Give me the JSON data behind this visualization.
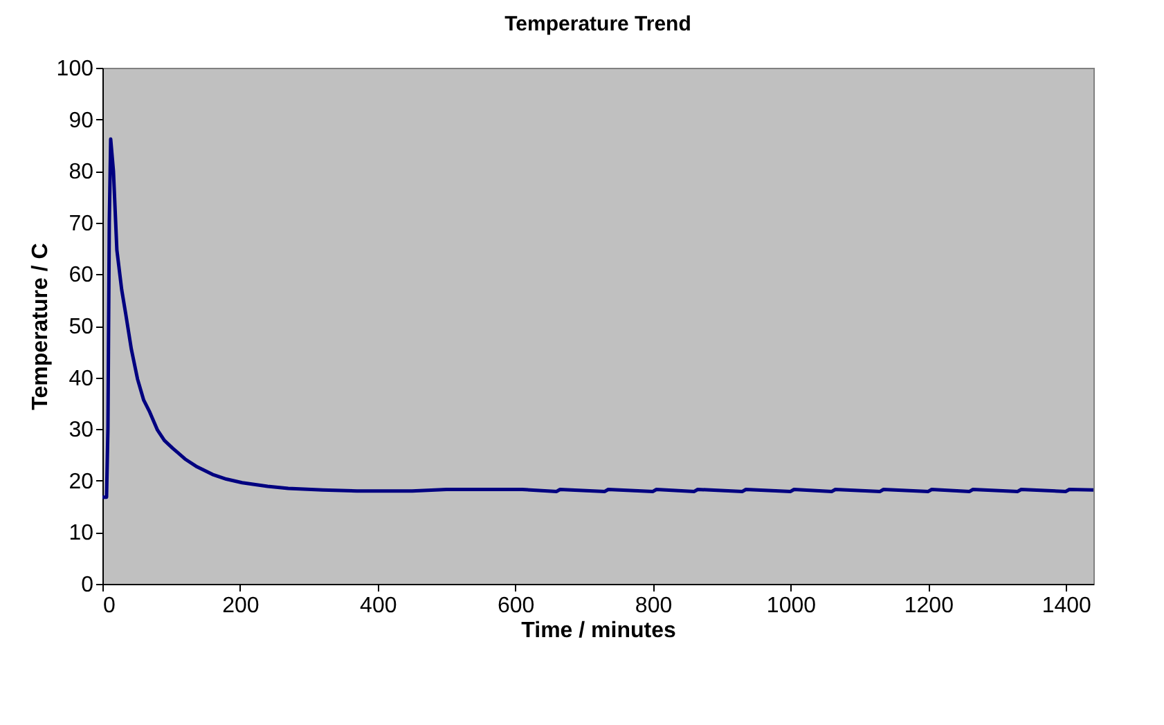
{
  "chart_data": {
    "type": "line",
    "title": "Temperature Trend",
    "xlabel": "Time / minutes",
    "ylabel": "Temperature / C",
    "x": [
      0,
      6,
      8,
      10,
      12,
      16,
      21,
      28,
      34,
      42,
      51,
      60,
      68,
      80,
      90,
      102,
      120,
      136,
      160,
      180,
      203,
      240,
      270,
      320,
      370,
      420,
      450,
      500,
      560,
      610,
      660,
      665,
      730,
      735,
      800,
      805,
      860,
      865,
      930,
      935,
      1000,
      1005,
      1060,
      1065,
      1130,
      1135,
      1200,
      1205,
      1260,
      1265,
      1330,
      1335,
      1400,
      1405,
      1440
    ],
    "series": [
      {
        "color": "#000080",
        "values": [
          16.8,
          16.8,
          30,
          70,
          86.2,
          80,
          64.7,
          57,
          52.2,
          45.5,
          39.7,
          35.6,
          33.5,
          29.8,
          27.8,
          26.3,
          24.2,
          22.8,
          21.2,
          20.3,
          19.6,
          18.9,
          18.5,
          18.2,
          18.0,
          18.0,
          18.0,
          18.3,
          18.3,
          18.3,
          17.9,
          18.3,
          17.9,
          18.3,
          17.9,
          18.3,
          17.9,
          18.3,
          17.9,
          18.3,
          17.9,
          18.3,
          17.9,
          18.3,
          17.9,
          18.3,
          17.9,
          18.3,
          17.9,
          18.3,
          17.9,
          18.3,
          17.9,
          18.3,
          18.2
        ]
      }
    ],
    "xlim": [
      0,
      1440
    ],
    "xticks": [
      0,
      200,
      400,
      600,
      800,
      1000,
      1200,
      1400
    ],
    "ylim": [
      0,
      100
    ],
    "yticks": [
      0,
      10,
      20,
      30,
      40,
      50,
      60,
      70,
      80,
      90,
      100
    ],
    "grid": false,
    "legend": false
  }
}
